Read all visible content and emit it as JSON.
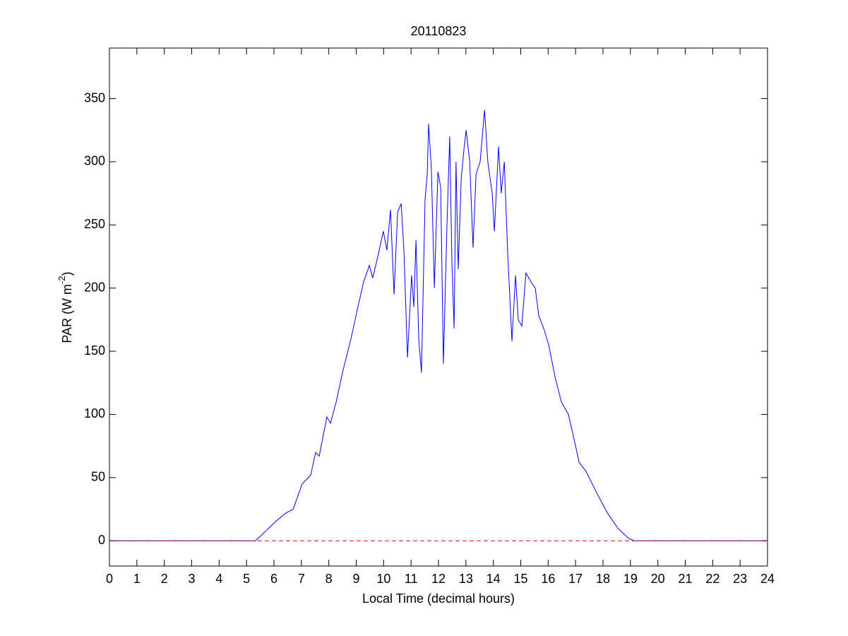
{
  "chart_data": {
    "type": "line",
    "title": "20110823",
    "xlabel": "Local Time (decimal hours)",
    "ylabel": {
      "text": "PAR (W m",
      "superscript": "-2",
      "suffix": ")"
    },
    "xlim": [
      0,
      24
    ],
    "xticks": [
      0,
      1,
      2,
      3,
      4,
      5,
      6,
      7,
      8,
      9,
      10,
      11,
      12,
      13,
      14,
      15,
      16,
      17,
      18,
      19,
      20,
      21,
      22,
      23,
      24
    ],
    "ylim": [
      -20,
      390
    ],
    "yticks": [
      0,
      50,
      100,
      150,
      200,
      250,
      300,
      350
    ],
    "reference_line": {
      "value": 0,
      "color": "#ff0000",
      "style": "dashed"
    },
    "series": [
      {
        "color": "#0000ff",
        "x": [
          0,
          5.33,
          6.05,
          6.44,
          6.7,
          7.03,
          7.34,
          7.52,
          7.65,
          7.93,
          8.06,
          8.27,
          8.52,
          8.81,
          9.01,
          9.27,
          9.48,
          9.6,
          9.79,
          9.99,
          10.12,
          10.25,
          10.38,
          10.51,
          10.64,
          10.74,
          10.87,
          11.02,
          11.1,
          11.18,
          11.28,
          11.38,
          11.51,
          11.59,
          11.64,
          11.74,
          11.85,
          11.98,
          12.08,
          12.18,
          12.31,
          12.41,
          12.49,
          12.57,
          12.64,
          12.72,
          12.83,
          12.93,
          13.01,
          13.14,
          13.26,
          13.37,
          13.52,
          13.68,
          13.8,
          13.96,
          14.04,
          14.19,
          14.29,
          14.4,
          14.52,
          14.68,
          14.81,
          14.91,
          15.04,
          15.19,
          15.37,
          15.53,
          15.66,
          15.84,
          16.02,
          16.25,
          16.48,
          16.74,
          16.95,
          17.13,
          17.38,
          17.77,
          18.16,
          18.54,
          18.93,
          19.13,
          24
        ],
        "values": [
          0,
          0,
          15,
          22,
          25,
          45,
          52,
          70,
          67,
          98,
          93,
          110,
          135,
          160,
          180,
          205,
          218,
          208,
          225,
          245,
          230,
          262,
          195,
          260,
          267,
          230,
          145,
          210,
          185,
          238,
          160,
          133,
          270,
          290,
          330,
          295,
          200,
          292,
          280,
          140,
          250,
          320,
          220,
          168,
          300,
          215,
          287,
          310,
          325,
          300,
          232,
          290,
          300,
          341,
          300,
          275,
          245,
          312,
          275,
          300,
          230,
          158,
          210,
          175,
          170,
          212,
          205,
          200,
          178,
          168,
          155,
          130,
          110,
          100,
          80,
          62,
          55,
          38,
          22,
          10,
          2,
          0,
          0
        ]
      }
    ]
  }
}
